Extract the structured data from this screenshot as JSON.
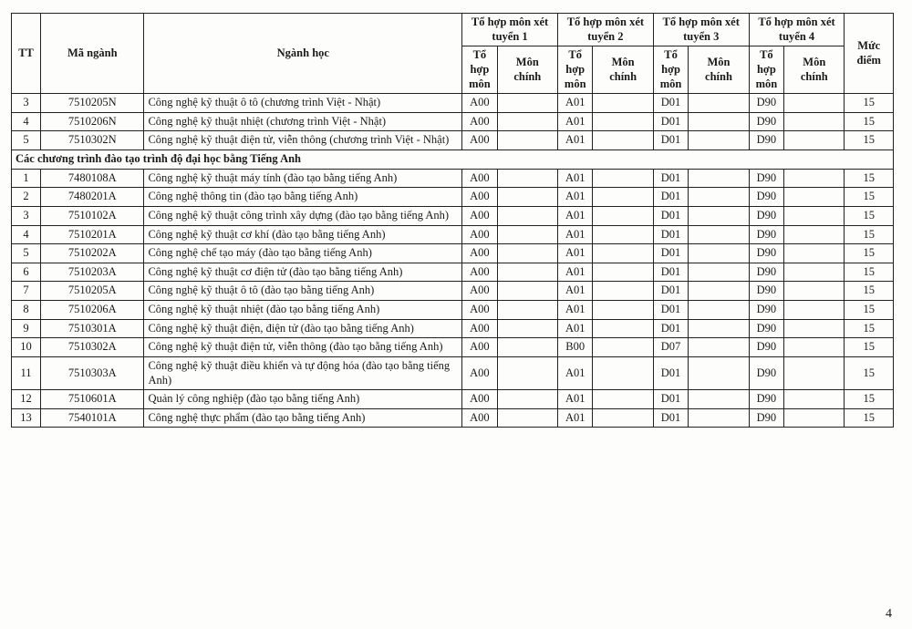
{
  "headers": {
    "tt": "TT",
    "code": "Mã ngành",
    "major": "Ngành học",
    "group1": "Tổ hợp môn xét tuyển 1",
    "group2": "Tổ hợp môn xét tuyển 2",
    "group3": "Tổ hợp môn xét tuyển 3",
    "group4": "Tổ hợp môn xét tuyển 4",
    "score": "Mức điểm",
    "subjects": "Tổ hợp môn",
    "main": "Môn chính"
  },
  "section_label": "Các chương trình đào tạo trình độ đại học bằng Tiếng Anh",
  "rows_top": [
    {
      "tt": "3",
      "code": "7510205N",
      "name": "Công nghệ kỹ thuật ô tô (chương trình Việt - Nhật)",
      "g1": "A00",
      "g2": "A01",
      "g3": "D01",
      "g4": "D90",
      "score": "15"
    },
    {
      "tt": "4",
      "code": "7510206N",
      "name": "Công nghệ kỹ thuật nhiệt (chương trình Việt - Nhật)",
      "g1": "A00",
      "g2": "A01",
      "g3": "D01",
      "g4": "D90",
      "score": "15"
    },
    {
      "tt": "5",
      "code": "7510302N",
      "name": "Công nghệ kỹ thuật điện tử, viễn thông (chương trình Việt - Nhật)",
      "g1": "A00",
      "g2": "A01",
      "g3": "D01",
      "g4": "D90",
      "score": "15"
    }
  ],
  "rows_anh": [
    {
      "tt": "1",
      "code": "7480108A",
      "name": "Công nghệ kỹ thuật máy tính (đào tạo bằng tiếng Anh)",
      "g1": "A00",
      "g2": "A01",
      "g3": "D01",
      "g4": "D90",
      "score": "15"
    },
    {
      "tt": "2",
      "code": "7480201A",
      "name": "Công nghệ thông tin (đào tạo bằng tiếng Anh)",
      "g1": "A00",
      "g2": "A01",
      "g3": "D01",
      "g4": "D90",
      "score": "15"
    },
    {
      "tt": "3",
      "code": "7510102A",
      "name": "Công nghệ kỹ thuật công trình xây dựng (đào tạo bằng tiếng Anh)",
      "g1": "A00",
      "g2": "A01",
      "g3": "D01",
      "g4": "D90",
      "score": "15"
    },
    {
      "tt": "4",
      "code": "7510201A",
      "name": "Công nghệ kỹ thuật cơ khí  (đào tạo bằng tiếng Anh)",
      "g1": "A00",
      "g2": "A01",
      "g3": "D01",
      "g4": "D90",
      "score": "15"
    },
    {
      "tt": "5",
      "code": "7510202A",
      "name": "Công nghệ chế tạo máy  (đào tạo bằng tiếng Anh)",
      "g1": "A00",
      "g2": "A01",
      "g3": "D01",
      "g4": "D90",
      "score": "15"
    },
    {
      "tt": "6",
      "code": "7510203A",
      "name": "Công nghệ kỹ thuật cơ điện tử (đào tạo bằng tiếng Anh)",
      "g1": "A00",
      "g2": "A01",
      "g3": "D01",
      "g4": "D90",
      "score": "15"
    },
    {
      "tt": "7",
      "code": "7510205A",
      "name": "Công nghệ kỹ thuật ô tô (đào tạo bằng tiếng Anh)",
      "g1": "A00",
      "g2": "A01",
      "g3": "D01",
      "g4": "D90",
      "score": "15"
    },
    {
      "tt": "8",
      "code": "7510206A",
      "name": "Công nghệ kỹ thuật nhiệt (đào tạo bằng tiếng Anh)",
      "g1": "A00",
      "g2": "A01",
      "g3": "D01",
      "g4": "D90",
      "score": "15"
    },
    {
      "tt": "9",
      "code": "7510301A",
      "name": "Công nghệ kỹ thuật điện, điện tử  (đào tạo bằng tiếng Anh)",
      "g1": "A00",
      "g2": "A01",
      "g3": "D01",
      "g4": "D90",
      "score": "15"
    },
    {
      "tt": "10",
      "code": "7510302A",
      "name": "Công nghệ kỹ thuật điện tử, viễn thông (đào tạo bằng tiếng Anh)",
      "g1": "A00",
      "g2": "B00",
      "g3": "D07",
      "g4": "D90",
      "score": "15"
    },
    {
      "tt": "11",
      "code": "7510303A",
      "name": "Công nghệ kỹ thuật điều khiển và tự động hóa (đào tạo bằng tiếng Anh)",
      "g1": "A00",
      "g2": "A01",
      "g3": "D01",
      "g4": "D90",
      "score": "15"
    },
    {
      "tt": "12",
      "code": "7510601A",
      "name": "Quản lý công nghiệp (đào tạo bằng tiếng Anh)",
      "g1": "A00",
      "g2": "A01",
      "g3": "D01",
      "g4": "D90",
      "score": "15"
    },
    {
      "tt": "13",
      "code": "7540101A",
      "name": "Công nghệ thực phẩm (đào tạo bằng tiếng Anh)",
      "g1": "A00",
      "g2": "A01",
      "g3": "D01",
      "g4": "D90",
      "score": "15"
    }
  ],
  "page_number": "4"
}
